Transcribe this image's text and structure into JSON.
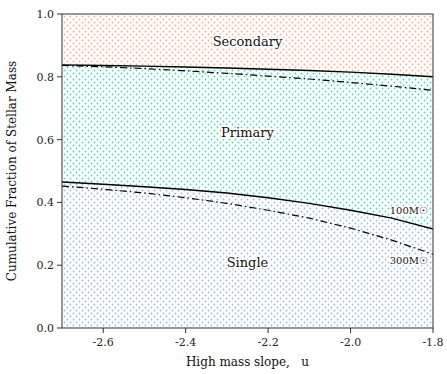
{
  "chart_data": {
    "type": "area",
    "xlabel": "High mass slope,   u",
    "ylabel": "Cumulative Fraction of Stellar Mass",
    "xlim": [
      -2.7,
      -1.8
    ],
    "ylim": [
      0.0,
      1.0
    ],
    "xticks": [
      -2.6,
      -2.4,
      -2.2,
      {
        "value": -2.0,
        "label": "-2.0"
      },
      -1.8
    ],
    "yticks": [
      {
        "value": 0.0,
        "label": "0.0"
      },
      0.2,
      0.4,
      0.6,
      0.8,
      {
        "value": 1.0,
        "label": "1.0"
      }
    ],
    "x": [
      -2.7,
      -2.6,
      -2.5,
      -2.4,
      -2.3,
      -2.2,
      -2.1,
      -2.0,
      -1.9,
      -1.8
    ],
    "series": [
      {
        "name": "100M☉",
        "color": "#000000",
        "line_style": "solid",
        "lower": [
          0.465,
          0.458,
          0.45,
          0.441,
          0.43,
          0.415,
          0.397,
          0.375,
          0.35,
          0.315
        ],
        "upper": [
          0.838,
          0.836,
          0.834,
          0.831,
          0.828,
          0.824,
          0.82,
          0.815,
          0.808,
          0.8
        ]
      },
      {
        "name": "300M☉",
        "color": "#000000",
        "line_style": "dashdot",
        "lower": [
          0.452,
          0.442,
          0.43,
          0.415,
          0.397,
          0.375,
          0.35,
          0.318,
          0.28,
          0.235
        ],
        "upper": [
          0.836,
          0.832,
          0.826,
          0.819,
          0.811,
          0.802,
          0.793,
          0.782,
          0.77,
          0.757
        ]
      }
    ],
    "areas": [
      {
        "name": "Single",
        "color": "#99bbdd"
      },
      {
        "name": "Primary",
        "color": "#44ddbb"
      },
      {
        "name": "Secondary",
        "color": "#ffaa88"
      }
    ]
  }
}
